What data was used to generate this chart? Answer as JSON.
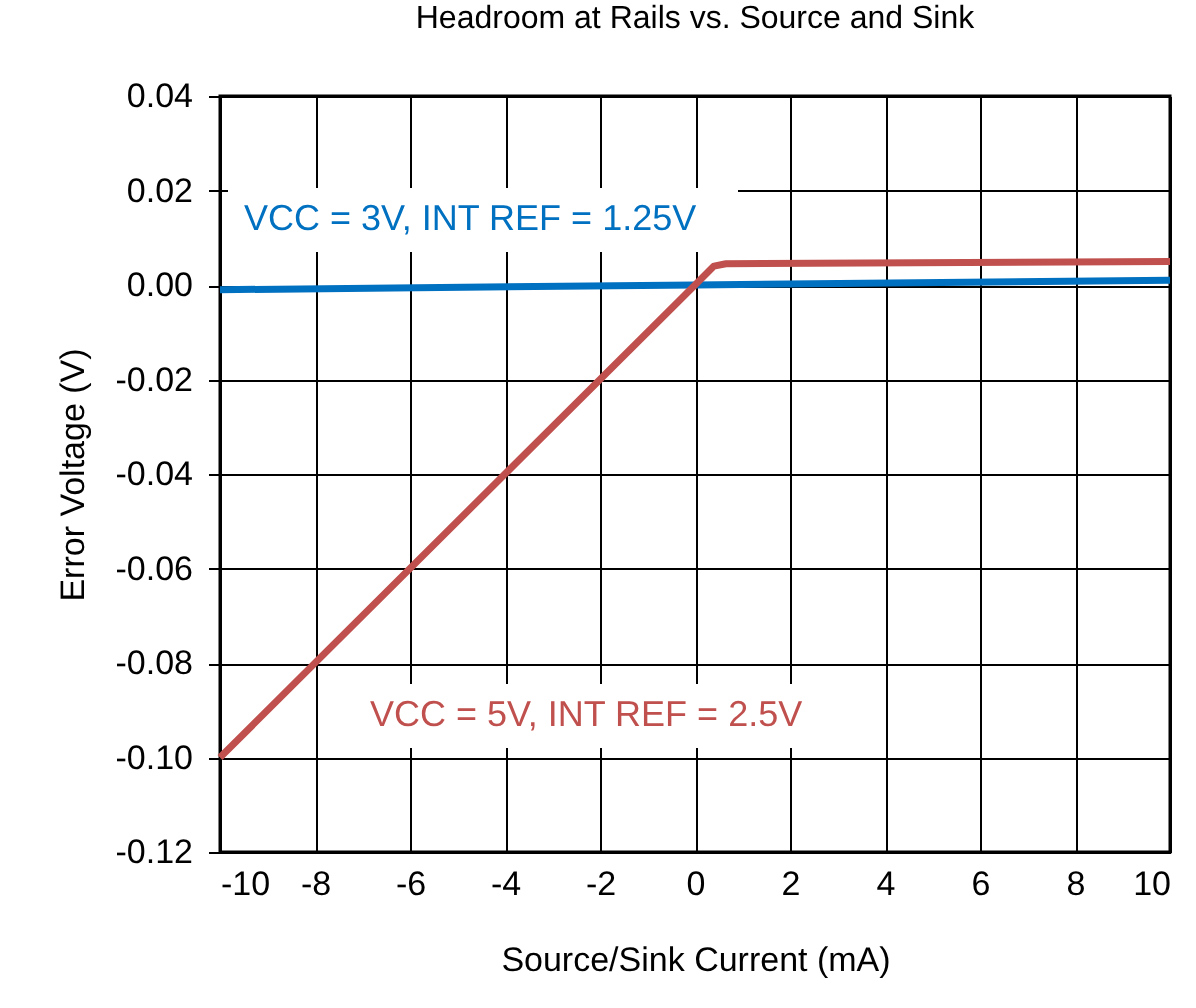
{
  "chart_data": {
    "type": "line",
    "title": "Headroom at Rails vs. Source and Sink",
    "xlabel": "Source/Sink Current (mA)",
    "ylabel": "Error Voltage (V)",
    "xlim": [
      -10,
      10
    ],
    "xticks": [
      -10,
      -8,
      -6,
      -4,
      -2,
      0,
      2,
      4,
      6,
      8,
      10
    ],
    "ylim": [
      -0.12,
      0.04
    ],
    "yticks": [
      {
        "value": -0.12,
        "label": "-0.12"
      },
      {
        "value": -0.1,
        "label": "-0.10"
      },
      {
        "value": -0.08,
        "label": "-0.08"
      },
      {
        "value": -0.06,
        "label": "-0.06"
      },
      {
        "value": -0.04,
        "label": "-0.04"
      },
      {
        "value": -0.02,
        "label": "-0.02"
      },
      {
        "value": 0,
        "label": "0.00"
      },
      {
        "value": 0.02,
        "label": "0.02"
      },
      {
        "value": 0.04,
        "label": "0.04"
      }
    ],
    "grid": true,
    "legend": false,
    "marker": "none",
    "line_style": "solid",
    "series": [
      {
        "name": "VCC = 3V, INT REF = 1.25V",
        "color": "#0070c0",
        "x": [
          -10,
          0,
          10
        ],
        "values": [
          -0.001,
          0,
          0.001
        ]
      },
      {
        "name": "VCC = 5V, INT REF = 2.5V",
        "color": "#c0504d",
        "x": [
          -10,
          0,
          0.4,
          0.65,
          10
        ],
        "values": [
          -0.1,
          0,
          0.004,
          0.0045,
          0.005
        ]
      }
    ]
  }
}
